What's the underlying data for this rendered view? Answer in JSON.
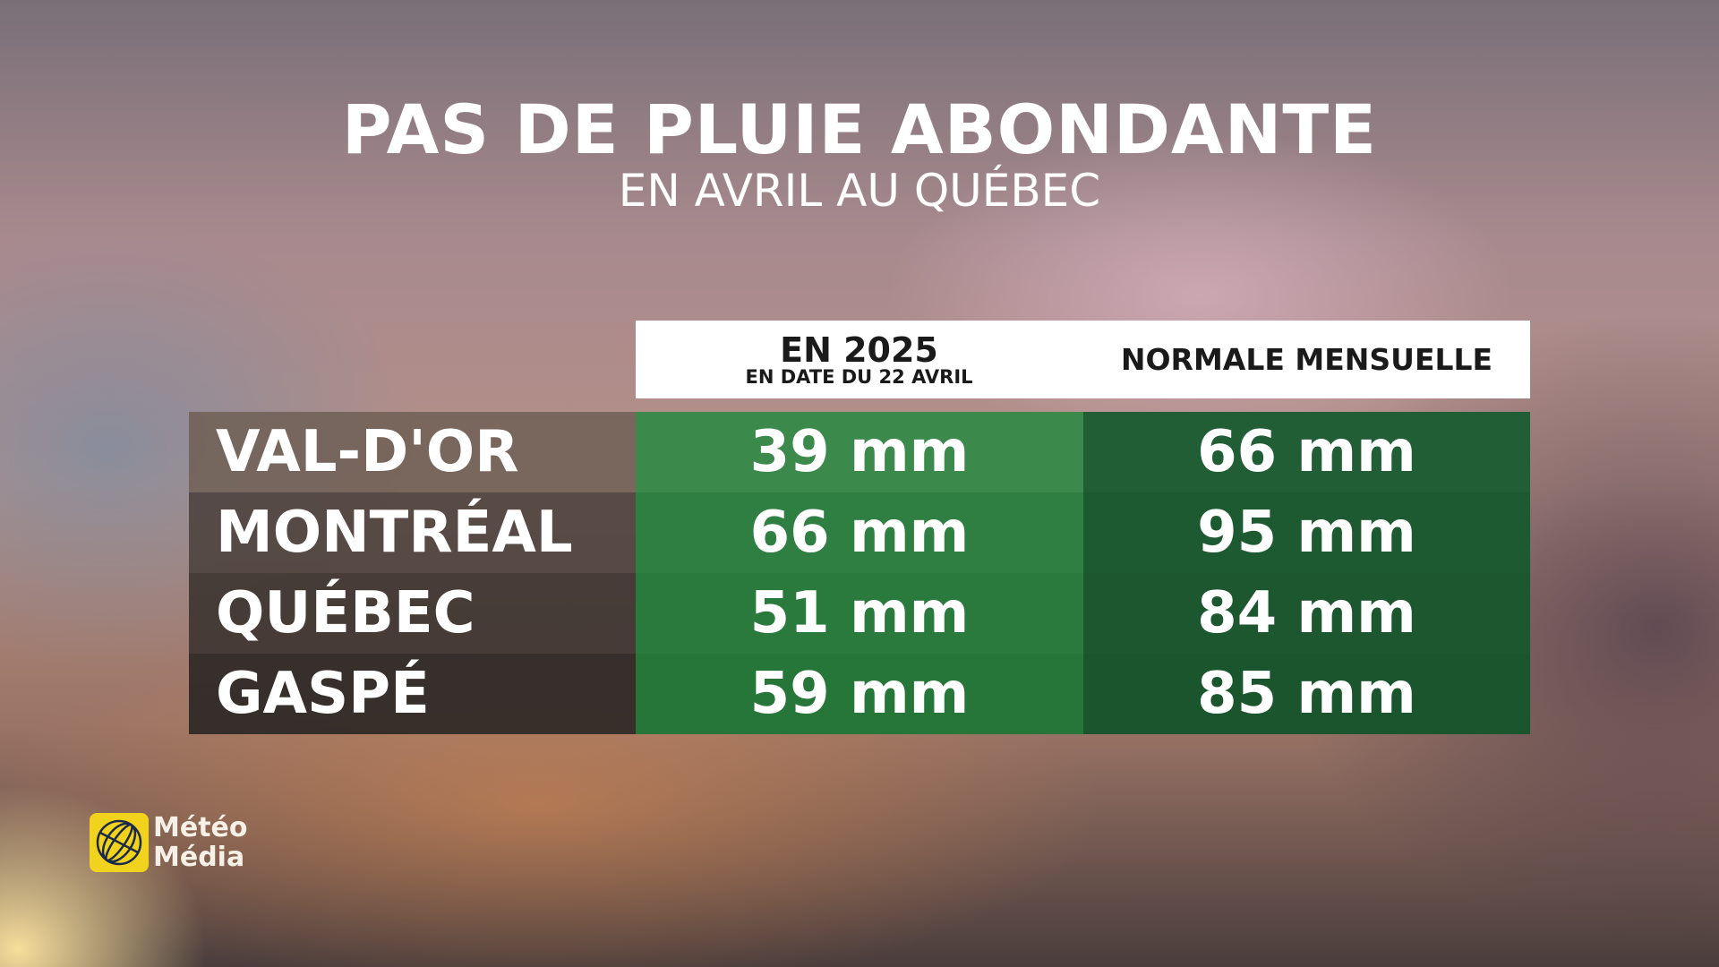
{
  "header": {
    "title": "PAS DE PLUIE ABONDANTE",
    "subtitle": "EN AVRIL AU QUÉBEC"
  },
  "table": {
    "columns": [
      {
        "title": "EN 2025",
        "subtitle": "EN DATE DU 22 AVRIL"
      },
      {
        "title": "NORMALE MENSUELLE"
      }
    ],
    "rows": [
      [
        "VAL-D'OR",
        "39 mm",
        "66 mm"
      ],
      [
        "MONTRÉAL",
        "66 mm",
        "95 mm"
      ],
      [
        "QUÉBEC",
        "51 mm",
        "84 mm"
      ],
      [
        "GASPÉ",
        "59 mm",
        "85 mm"
      ]
    ]
  },
  "logo": {
    "line1": "Météo",
    "line2": "Média"
  }
}
